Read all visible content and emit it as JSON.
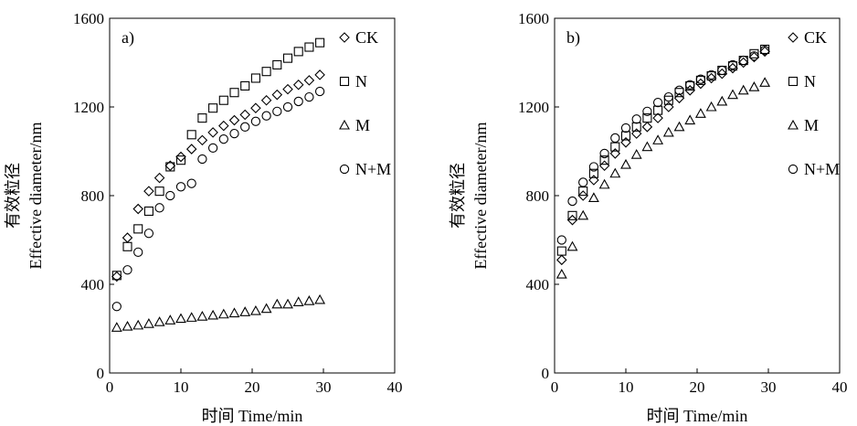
{
  "chart_data": [
    {
      "type": "scatter",
      "panel_label": "a)",
      "xlabel": "时间 Time/min",
      "ylabel_cn": "有效粒径",
      "ylabel_en": "Effective diameter/nm",
      "xlim": [
        0,
        40
      ],
      "ylim": [
        0,
        1600
      ],
      "xticks": [
        0,
        10,
        20,
        30,
        40
      ],
      "yticks": [
        0,
        400,
        800,
        1200,
        1600
      ],
      "grid": false,
      "legend_position": "right",
      "series": [
        {
          "name": "CK",
          "marker": "diamond",
          "x": [
            1,
            2.5,
            4,
            5.5,
            7,
            8.5,
            10,
            11.5,
            13,
            14.5,
            16,
            17.5,
            19,
            20.5,
            22,
            23.5,
            25,
            26.5,
            28,
            29.5
          ],
          "y": [
            435,
            610,
            740,
            820,
            880,
            935,
            975,
            1010,
            1050,
            1085,
            1115,
            1140,
            1165,
            1195,
            1230,
            1255,
            1280,
            1300,
            1320,
            1345
          ]
        },
        {
          "name": "N",
          "marker": "square",
          "x": [
            1,
            2.5,
            4,
            5.5,
            7,
            8.5,
            10,
            11.5,
            13,
            14.5,
            16,
            17.5,
            19,
            20.5,
            22,
            23.5,
            25,
            26.5,
            28,
            29.5
          ],
          "y": [
            440,
            570,
            650,
            730,
            820,
            930,
            960,
            1075,
            1150,
            1195,
            1230,
            1265,
            1295,
            1330,
            1360,
            1390,
            1420,
            1450,
            1470,
            1490
          ]
        },
        {
          "name": "M",
          "marker": "triangle",
          "x": [
            1,
            2.5,
            4,
            5.5,
            7,
            8.5,
            10,
            11.5,
            13,
            14.5,
            16,
            17.5,
            19,
            20.5,
            22,
            23.5,
            25,
            26.5,
            28,
            29.5
          ],
          "y": [
            205,
            210,
            215,
            222,
            230,
            238,
            245,
            250,
            255,
            260,
            265,
            270,
            275,
            280,
            290,
            310,
            310,
            320,
            325,
            330
          ]
        },
        {
          "name": "N+M",
          "marker": "circle",
          "x": [
            1,
            2.5,
            4,
            5.5,
            7,
            8.5,
            10,
            11.5,
            13,
            14.5,
            16,
            17.5,
            19,
            20.5,
            22,
            23.5,
            25,
            26.5,
            28,
            29.5
          ],
          "y": [
            300,
            465,
            545,
            630,
            745,
            800,
            840,
            855,
            965,
            1015,
            1055,
            1080,
            1110,
            1135,
            1160,
            1180,
            1200,
            1225,
            1245,
            1270
          ]
        }
      ]
    },
    {
      "type": "scatter",
      "panel_label": "b)",
      "xlabel": "时间 Time/min",
      "ylabel_cn": "有效粒径",
      "ylabel_en": "Effective diameter/nm",
      "xlim": [
        0,
        40
      ],
      "ylim": [
        0,
        1600
      ],
      "xticks": [
        0,
        10,
        20,
        30,
        40
      ],
      "yticks": [
        0,
        400,
        800,
        1200,
        1600
      ],
      "grid": false,
      "legend_position": "right",
      "series": [
        {
          "name": "CK",
          "marker": "diamond",
          "x": [
            1,
            2.5,
            4,
            5.5,
            7,
            8.5,
            10,
            11.5,
            13,
            14.5,
            16,
            17.5,
            19,
            20.5,
            22,
            23.5,
            25,
            26.5,
            28,
            29.5
          ],
          "y": [
            510,
            690,
            800,
            870,
            935,
            990,
            1040,
            1080,
            1110,
            1150,
            1200,
            1240,
            1275,
            1305,
            1330,
            1350,
            1375,
            1400,
            1425,
            1450
          ]
        },
        {
          "name": "N",
          "marker": "square",
          "x": [
            1,
            2.5,
            4,
            5.5,
            7,
            8.5,
            10,
            11.5,
            13,
            14.5,
            16,
            17.5,
            19,
            20.5,
            22,
            23.5,
            25,
            26.5,
            28,
            29.5
          ],
          "y": [
            550,
            710,
            820,
            900,
            960,
            1020,
            1070,
            1110,
            1150,
            1185,
            1230,
            1265,
            1295,
            1320,
            1340,
            1365,
            1385,
            1410,
            1440,
            1460
          ]
        },
        {
          "name": "M",
          "marker": "triangle",
          "x": [
            1,
            2.5,
            4,
            5.5,
            7,
            8.5,
            10,
            11.5,
            13,
            14.5,
            16,
            17.5,
            19,
            20.5,
            22,
            23.5,
            25,
            26.5,
            28,
            29.5
          ],
          "y": [
            445,
            570,
            710,
            790,
            850,
            900,
            940,
            985,
            1020,
            1050,
            1085,
            1110,
            1140,
            1170,
            1200,
            1225,
            1255,
            1275,
            1290,
            1310
          ]
        },
        {
          "name": "N+M",
          "marker": "circle",
          "x": [
            1,
            2.5,
            4,
            5.5,
            7,
            8.5,
            10,
            11.5,
            13,
            14.5,
            16,
            17.5,
            19,
            20.5,
            22,
            23.5,
            25,
            26.5,
            28,
            29.5
          ],
          "y": [
            600,
            775,
            860,
            930,
            990,
            1060,
            1105,
            1145,
            1180,
            1220,
            1245,
            1275,
            1300,
            1325,
            1345,
            1365,
            1390,
            1410,
            1430,
            1455
          ]
        }
      ]
    }
  ]
}
